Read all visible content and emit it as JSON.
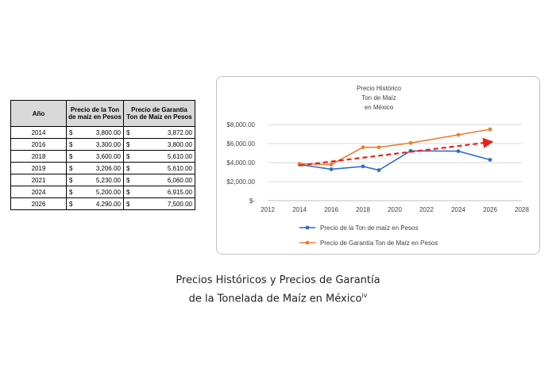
{
  "table": {
    "headers": [
      "Año",
      "Precio de la Ton de maíz en Pesos",
      "Precio de Garantía Ton de Maíz en Pesos"
    ],
    "currency": "$",
    "rows": [
      {
        "year": "2014",
        "p1": "3,800.00",
        "p2": "3,872.00"
      },
      {
        "year": "2016",
        "p1": "3,300.00",
        "p2": "3,800.00"
      },
      {
        "year": "2018",
        "p1": "3,600.00",
        "p2": "5,610.00"
      },
      {
        "year": "2019",
        "p1": "3,206.00",
        "p2": "5,610.00"
      },
      {
        "year": "2021",
        "p1": "5,230.00",
        "p2": "6,060.00"
      },
      {
        "year": "2024",
        "p1": "5,200.00",
        "p2": "6,915.00"
      },
      {
        "year": "2026",
        "p1": "4,290.00",
        "p2": "7,500.00"
      }
    ]
  },
  "chart_data": {
    "type": "line",
    "title_lines": [
      "Precio Histórico",
      "Ton de Maíz",
      "en México"
    ],
    "xlim": [
      2012,
      2028
    ],
    "x_ticks": [
      2012,
      2014,
      2016,
      2018,
      2020,
      2022,
      2024,
      2026,
      2028
    ],
    "ylim": [
      0,
      8000
    ],
    "y_ticks": [
      0,
      2000,
      4000,
      6000,
      8000
    ],
    "y_tick_labels": [
      "$-",
      "$2,000.00",
      "$4,000.00",
      "$6,000.00",
      "$8,000.00"
    ],
    "grid": true,
    "legend_position": "bottom",
    "series": [
      {
        "name": "Precio de la Ton de maíz en Pesos",
        "color": "#2e6fc4",
        "x": [
          2014,
          2016,
          2018,
          2019,
          2021,
          2024,
          2026
        ],
        "y": [
          3800,
          3300,
          3600,
          3206,
          5230,
          5200,
          4290
        ]
      },
      {
        "name": "Precio de Garantía Ton  de Maíz en Pesos",
        "color": "#ed7d31",
        "x": [
          2014,
          2016,
          2018,
          2019,
          2021,
          2024,
          2026
        ],
        "y": [
          3872,
          3800,
          5610,
          5610,
          6060,
          6915,
          7500
        ]
      }
    ],
    "trendline": {
      "color": "#e8211a",
      "x": [
        2014,
        2026
      ],
      "y": [
        3700,
        6150
      ]
    }
  },
  "caption": {
    "line1": "Precios Históricos y Precios de Garantía",
    "line2": "de la Tonelada de Maíz en México",
    "superscript": "iv"
  }
}
